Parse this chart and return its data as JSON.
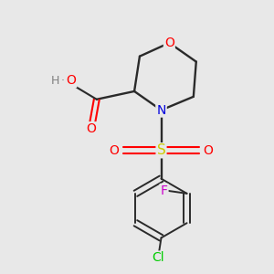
{
  "background_color": "#e8e8e8",
  "bond_color": "#2a2a2a",
  "atom_colors": {
    "O": "#ff0000",
    "N": "#0000dd",
    "S": "#cccc00",
    "F": "#cc00cc",
    "Cl": "#00cc00",
    "H": "#808080",
    "C": "#2a2a2a"
  },
  "figsize": [
    3.0,
    3.0
  ],
  "dpi": 100
}
